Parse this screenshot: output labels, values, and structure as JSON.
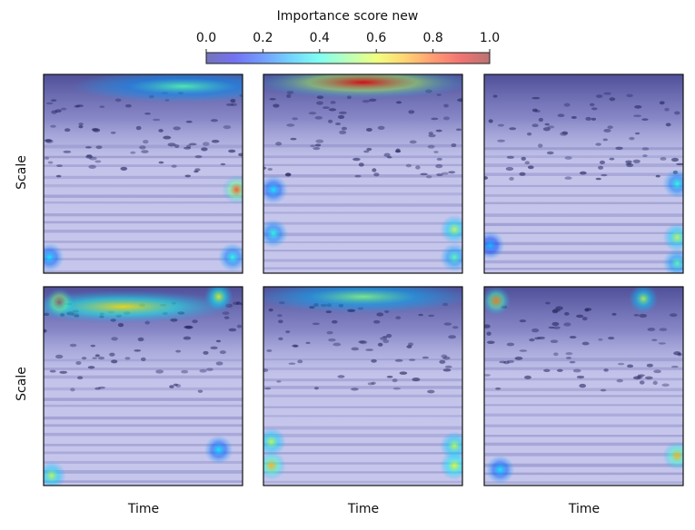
{
  "chart_data": {
    "type": "heatmap",
    "colorbar": {
      "title": "Importance score new",
      "ticks": [
        "0.0",
        "0.2",
        "0.4",
        "0.6",
        "0.8",
        "1.0"
      ],
      "range": [
        0,
        1
      ]
    },
    "grid": {
      "rows": 2,
      "cols": 3
    },
    "ylabel": "Scale",
    "xlabel": "Time",
    "panels": [
      {
        "row": 0,
        "col": 0,
        "high_regions": [
          {
            "t": 0.97,
            "s": 0.58,
            "v": 0.8
          },
          {
            "t": 0.03,
            "s": 0.92,
            "v": 0.35
          },
          {
            "t": 0.95,
            "s": 0.92,
            "v": 0.4
          },
          {
            "t": 0.7,
            "s": 0.06,
            "v": 0.45
          }
        ]
      },
      {
        "row": 0,
        "col": 1,
        "high_regions": [
          {
            "t": 0.5,
            "s": 0.04,
            "v": 0.9
          },
          {
            "t": 0.05,
            "s": 0.58,
            "v": 0.35
          },
          {
            "t": 0.96,
            "s": 0.78,
            "v": 0.55
          },
          {
            "t": 0.96,
            "s": 0.92,
            "v": 0.45
          },
          {
            "t": 0.05,
            "s": 0.8,
            "v": 0.4
          }
        ]
      },
      {
        "row": 0,
        "col": 2,
        "high_regions": [
          {
            "t": 0.97,
            "s": 0.55,
            "v": 0.4
          },
          {
            "t": 0.97,
            "s": 0.82,
            "v": 0.55
          },
          {
            "t": 0.97,
            "s": 0.95,
            "v": 0.45
          },
          {
            "t": 0.03,
            "s": 0.86,
            "v": 0.3
          }
        ]
      },
      {
        "row": 1,
        "col": 0,
        "high_regions": [
          {
            "t": 0.08,
            "s": 0.08,
            "v": 0.9
          },
          {
            "t": 0.4,
            "s": 0.1,
            "v": 0.65
          },
          {
            "t": 0.88,
            "s": 0.05,
            "v": 0.6
          },
          {
            "t": 0.04,
            "s": 0.95,
            "v": 0.55
          },
          {
            "t": 0.88,
            "s": 0.82,
            "v": 0.35
          }
        ]
      },
      {
        "row": 1,
        "col": 1,
        "high_regions": [
          {
            "t": 0.5,
            "s": 0.05,
            "v": 0.5
          },
          {
            "t": 0.04,
            "s": 0.78,
            "v": 0.55
          },
          {
            "t": 0.04,
            "s": 0.9,
            "v": 0.7
          },
          {
            "t": 0.96,
            "s": 0.8,
            "v": 0.55
          },
          {
            "t": 0.96,
            "s": 0.9,
            "v": 0.6
          }
        ]
      },
      {
        "row": 1,
        "col": 2,
        "high_regions": [
          {
            "t": 0.06,
            "s": 0.07,
            "v": 0.75
          },
          {
            "t": 0.8,
            "s": 0.06,
            "v": 0.55
          },
          {
            "t": 0.97,
            "s": 0.85,
            "v": 0.7
          },
          {
            "t": 0.08,
            "s": 0.92,
            "v": 0.35
          }
        ]
      }
    ]
  }
}
